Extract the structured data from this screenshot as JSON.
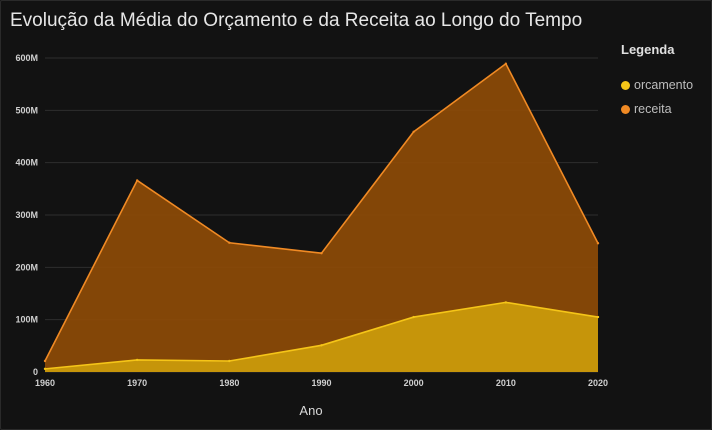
{
  "chart_data": {
    "type": "area",
    "title": "Evolução da Média do Orçamento e da Receita ao Longo do Tempo",
    "xlabel": "Ano",
    "ylabel": "",
    "x": [
      1960,
      1970,
      1980,
      1990,
      2000,
      2010,
      2020
    ],
    "x_tick_labels": [
      "1960",
      "1970",
      "1980",
      "1990",
      "2000",
      "2010",
      "2020"
    ],
    "y_ticks": [
      0,
      100000000,
      200000000,
      300000000,
      400000000,
      500000000,
      600000000
    ],
    "y_tick_labels": [
      "0",
      "100M",
      "200M",
      "300M",
      "400M",
      "500M",
      "600M"
    ],
    "ylim": [
      0,
      600000000
    ],
    "grid": true,
    "legend_title": "Legenda",
    "legend_position": "right",
    "series": [
      {
        "name": "orcamento",
        "color": "#f5c518",
        "fill": "#c99a0b",
        "values": [
          6000000,
          23000000,
          21000000,
          51000000,
          105000000,
          133000000,
          105000000
        ]
      },
      {
        "name": "receita",
        "color": "#f08a24",
        "fill": "#8a4a07",
        "values": [
          21000000,
          366000000,
          247000000,
          227000000,
          459000000,
          589000000,
          246000000
        ]
      }
    ]
  }
}
